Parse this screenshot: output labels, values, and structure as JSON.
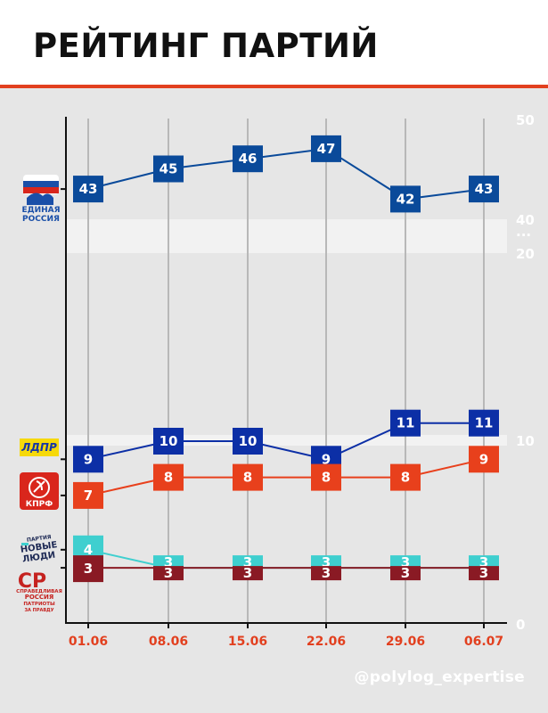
{
  "header": {
    "title": "РЕЙТИНГ ПАРТИЙ"
  },
  "watermark": "@polylog_expertise",
  "parties": [
    {
      "id": "er",
      "logo_lines": [
        "ЕДИНАЯ",
        "РОССИЯ"
      ]
    },
    {
      "id": "ldpr",
      "logo_lines": [
        "ЛДПР"
      ]
    },
    {
      "id": "kprf",
      "logo_lines": [
        "КПРФ"
      ]
    },
    {
      "id": "nl",
      "logo_lines": [
        "ПАРТИЯ",
        "НОВЫЕ",
        "ЛЮДИ"
      ]
    },
    {
      "id": "sr",
      "logo_lines": [
        "СР",
        "СПРАВЕДЛИВАЯ",
        "РОССИЯ",
        "ПАТРИОТЫ",
        "ЗА ПРАВДУ"
      ]
    }
  ],
  "chart_data": {
    "type": "line",
    "title": "РЕЙТИНГ ПАРТИЙ",
    "x": [
      "01.06",
      "08.06",
      "15.06",
      "22.06",
      "29.06",
      "06.07"
    ],
    "y_ticks": [
      "50",
      "40",
      "...",
      "20",
      "10",
      "0"
    ],
    "y_axis_break": [
      20,
      40
    ],
    "ylim": [
      0,
      50
    ],
    "grid": true,
    "series": [
      {
        "party": "er",
        "values": [
          43,
          45,
          46,
          47,
          42,
          43
        ],
        "color": "#0a4a9a"
      },
      {
        "party": "ldpr",
        "values": [
          9,
          10,
          10,
          9,
          11,
          11
        ],
        "color": "#0c2fa6"
      },
      {
        "party": "kprf",
        "values": [
          7,
          8,
          8,
          8,
          8,
          9
        ],
        "color": "#e8401c"
      },
      {
        "party": "nl",
        "values": [
          4,
          3,
          3,
          3,
          3,
          3
        ],
        "color": "#3fcfcf"
      },
      {
        "party": "sr",
        "values": [
          3,
          3,
          3,
          3,
          3,
          3
        ],
        "color": "#8a1a24"
      }
    ],
    "colors": {
      "x_tick_label": "#e2401f",
      "grid": "#b8b8b8",
      "axis": "#111111",
      "y_tick_label": "#ffffff",
      "band": "#f2f2f2"
    }
  }
}
